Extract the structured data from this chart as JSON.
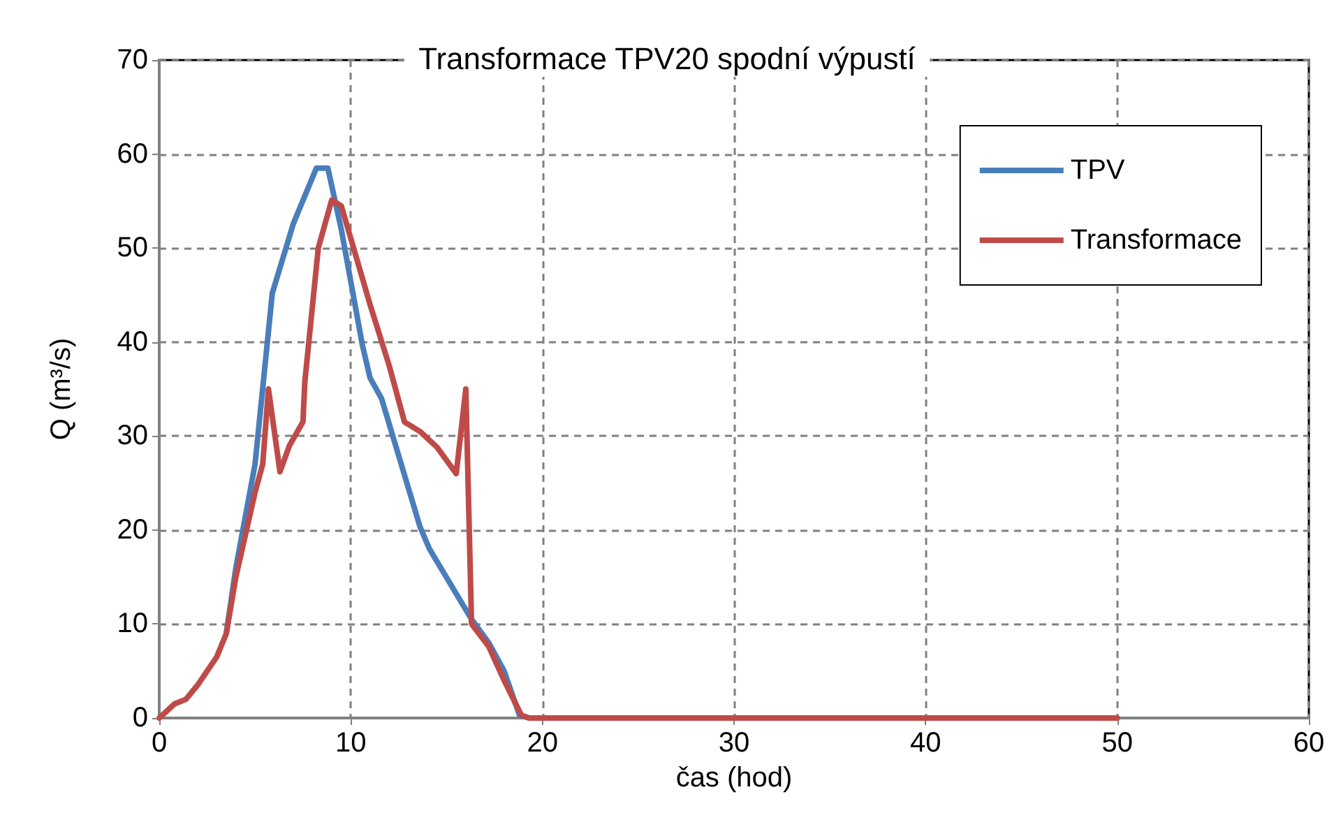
{
  "chart_data": {
    "type": "line",
    "title": "Transformace TPV20 spodní výpustí",
    "xlabel": "čas (hod)",
    "ylabel": "Q (m³/s)",
    "xlim": [
      0,
      60
    ],
    "xticks": [
      0,
      10,
      20,
      30,
      40,
      50,
      60
    ],
    "ylim": [
      0,
      70
    ],
    "yticks": [
      0,
      10,
      20,
      30,
      40,
      50,
      60,
      70
    ],
    "grid": true,
    "legend": "top right",
    "marker": "none",
    "line_style": "solid",
    "series": [
      {
        "name": "TPV",
        "color": "#4a7ebb",
        "x": [
          3.5,
          4,
          5,
          5.9,
          7,
          8.2,
          8.8,
          9.5,
          10.6,
          11,
          11.6,
          13.6,
          14.1,
          16.3,
          17.2,
          18,
          18.8,
          19.3
        ],
        "values": [
          9,
          16,
          27,
          45.2,
          52.6,
          58.5,
          58.5,
          52,
          39.7,
          36.2,
          34,
          20.4,
          18,
          10.5,
          8,
          5,
          0.3,
          0
        ]
      },
      {
        "name": "Transformace",
        "color": "#be4b48",
        "x": [
          0,
          0.8,
          1.4,
          2,
          3,
          3.5,
          4,
          5,
          5.4,
          5.7,
          6.3,
          6.8,
          7.5,
          7.6,
          8.3,
          9,
          9.5,
          10,
          11,
          12,
          12.8,
          13.6,
          14.5,
          15.5,
          16,
          16.3,
          17.2,
          18,
          18.9,
          19.3,
          50
        ],
        "values": [
          0,
          1.5,
          2,
          3.5,
          6.5,
          9,
          15,
          24,
          27,
          35,
          26.2,
          29,
          31.5,
          35.8,
          50,
          55.1,
          54.5,
          51,
          44,
          37.5,
          31.5,
          30.5,
          28.8,
          26,
          35,
          10,
          7.6,
          4,
          0.3,
          0,
          0
        ]
      }
    ]
  }
}
